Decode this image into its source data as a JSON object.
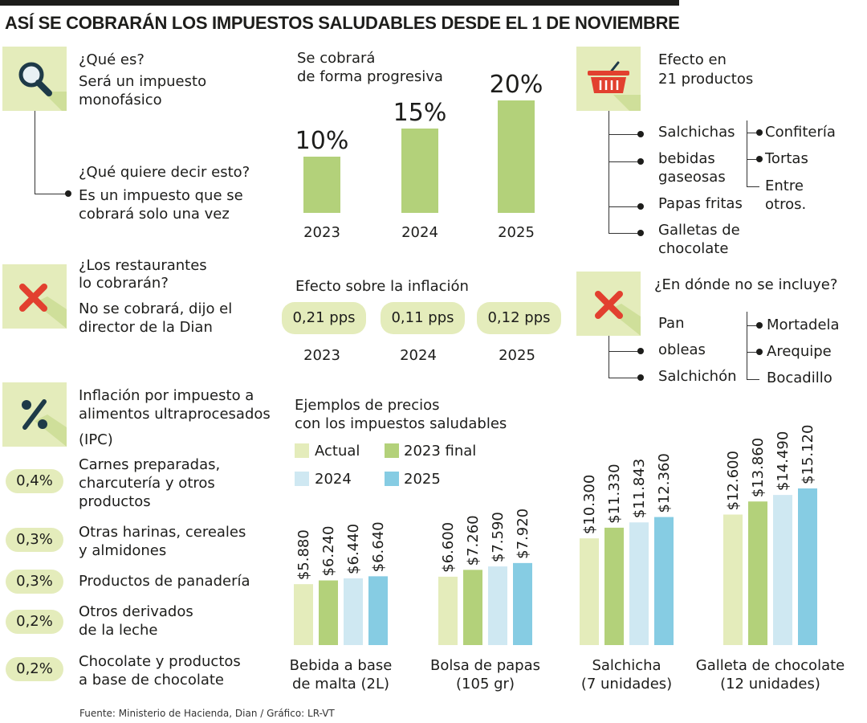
{
  "header": {
    "title": "ASÍ SE COBRARÁN LOS IMPUESTOS SALUDABLES DESDE EL 1 DE NOVIEMBRE"
  },
  "que_es": {
    "q1": "¿Qué es?",
    "a1_line1": "Será un impuesto",
    "a1_line2": "monofásico",
    "q2": "¿Qué quiere decir esto?",
    "a2_line1": "Es un impuesto que se",
    "a2_line2": "cobrará solo una vez"
  },
  "restaurantes": {
    "q_line1": "¿Los restaurantes",
    "q_line2": "lo cobrarán?",
    "a_line1": "No se cobrará, dijo el",
    "a_line2": "director de la Dian"
  },
  "ipc": {
    "title_line1": "Inflación por impuesto a",
    "title_line2": "alimentos ultraprocesados",
    "subtitle": "(IPC)",
    "items": [
      {
        "value": "0,4%",
        "line1": "Carnes preparadas,",
        "line2": "charcutería y otros",
        "line3": "productos"
      },
      {
        "value": "0,3%",
        "line1": "Otras harinas, cereales",
        "line2": "y almidones",
        "line3": ""
      },
      {
        "value": "0,3%",
        "line1": "Productos de panadería",
        "line2": "",
        "line3": ""
      },
      {
        "value": "0,2%",
        "line1": "Otros derivados",
        "line2": "de la leche",
        "line3": ""
      },
      {
        "value": "0,2%",
        "line1": "Chocolate y productos",
        "line2": "a base de chocolate",
        "line3": ""
      }
    ]
  },
  "progresiva": {
    "title_line1": "Se cobrará",
    "title_line2": "de forma progresiva",
    "labels": [
      "10%",
      "15%",
      "20%"
    ],
    "years": [
      "2023",
      "2024",
      "2025"
    ]
  },
  "inflacion": {
    "title": "Efecto sobre la inflación",
    "values": [
      "0,21 pps",
      "0,11 pps",
      "0,12 pps"
    ],
    "years": [
      "2023",
      "2024",
      "2025"
    ]
  },
  "precios": {
    "title_line1": "Ejemplos de precios",
    "title_line2": "con los impuestos saludables",
    "legend": [
      "Actual",
      "2023 final",
      "2024",
      "2025"
    ]
  },
  "efecto": {
    "title_line1": "Efecto en",
    "title_line2": "21 productos",
    "left_items": [
      "Salchichas",
      "bebidas",
      "gaseosas",
      "Papas fritas",
      "Galletas de",
      "chocolate"
    ],
    "right_items": [
      "Confitería",
      "Tortas",
      "Entre",
      "otros."
    ]
  },
  "no_incluye": {
    "title": "¿En dónde no se incluye?",
    "left_items": [
      "Pan",
      "obleas",
      "Salchichón"
    ],
    "right_items": [
      "Mortadela",
      "Arequipe",
      "Bocadillo"
    ]
  },
  "footer": {
    "source": "Fuente: Ministerio de Hacienda, Dian / Gráfico: LR-VT"
  },
  "colors": {
    "actual": "#e4ecbb",
    "y2023": "#b3d17a",
    "y2024": "#cfe8f2",
    "y2025": "#86cce3",
    "red_x": "#e2402f",
    "basket": "#e2402f",
    "icon_bg": "#e4ecbb",
    "icon_dark": "#1e3a48"
  },
  "chart_data": [
    {
      "type": "bar",
      "title": "Se cobrará de forma progresiva",
      "categories": [
        "2023",
        "2024",
        "2025"
      ],
      "values": [
        10,
        15,
        20
      ],
      "data_labels": [
        "10%",
        "15%",
        "20%"
      ],
      "unit": "%",
      "ylim": [
        0,
        20
      ]
    },
    {
      "type": "bar",
      "title": "Ejemplos de precios con los impuestos saludables",
      "categories": [
        "Bebida a base de malta (2L)",
        "Bolsa de papas (105 gr)",
        "Salchicha (7 unidades)",
        "Galleta de chocolate (12 unidades)"
      ],
      "category_lines": [
        [
          "Bebida a base",
          "de malta (2L)"
        ],
        [
          "Bolsa de papas",
          "(105 gr)"
        ],
        [
          "Salchicha",
          "(7 unidades)"
        ],
        [
          "Galleta de chocolate",
          "(12 unidades)"
        ]
      ],
      "series": [
        {
          "name": "Actual",
          "values": [
            5880,
            6600,
            10300,
            12600
          ],
          "labels": [
            "$5.880",
            "$6.600",
            "$10.300",
            "$12.600"
          ]
        },
        {
          "name": "2023 final",
          "values": [
            6240,
            7260,
            11330,
            13860
          ],
          "labels": [
            "$6.240",
            "$7.260",
            "$11.330",
            "$13.860"
          ]
        },
        {
          "name": "2024",
          "values": [
            6440,
            7590,
            11843,
            14490
          ],
          "labels": [
            "$6.440",
            "$7.590",
            "$11.843",
            "$14.490"
          ]
        },
        {
          "name": "2025",
          "values": [
            6640,
            7920,
            12360,
            15120
          ],
          "labels": [
            "$6.640",
            "$7.920",
            "$12.360",
            "$15.120"
          ]
        }
      ],
      "ylim": [
        0,
        15120
      ],
      "legend": "top-left"
    }
  ]
}
